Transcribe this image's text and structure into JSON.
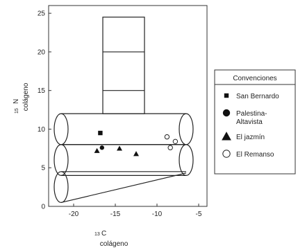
{
  "chart_data": {
    "type": "scatter",
    "x_axis": {
      "isotope": "13",
      "element": "C",
      "label2": "colágeno",
      "ticks": [
        "-20",
        "-15",
        "-10",
        "-5"
      ],
      "range": [
        -23,
        -4
      ]
    },
    "y_axis": {
      "isotope": "15",
      "element": "N",
      "label2": "colágeno",
      "ticks": [
        "0",
        "5",
        "10",
        "15",
        "20",
        "25"
      ],
      "range": [
        0,
        26
      ]
    },
    "legend": {
      "title": "Convenciones",
      "placement": "right",
      "entries": [
        {
          "label": "San Bernardo",
          "marker": "square"
        },
        {
          "label": "Palestina-\nAltavista",
          "marker": "circle"
        },
        {
          "label": "El jazmín",
          "marker": "triangle"
        },
        {
          "label": "El Remanso",
          "marker": "open-circle"
        }
      ]
    },
    "series": [
      {
        "name": "San Bernardo",
        "marker": "square",
        "points": [
          [
            -16.8,
            9.5
          ]
        ]
      },
      {
        "name": "Palestina-Altavista",
        "marker": "circle",
        "points": [
          [
            -16.6,
            7.6
          ]
        ]
      },
      {
        "name": "El jazmín",
        "marker": "triangle",
        "points": [
          [
            -17.2,
            7.2
          ],
          [
            -14.5,
            7.5
          ],
          [
            -12.5,
            6.8
          ]
        ]
      },
      {
        "name": "El Remanso",
        "marker": "open-circle",
        "points": [
          [
            -8.8,
            9.0
          ],
          [
            -8.4,
            7.6
          ],
          [
            -7.8,
            8.4
          ]
        ]
      }
    ],
    "reference_shapes": [
      {
        "shape": "cylinder",
        "x_range": [
          -21.5,
          -6.5
        ],
        "y_range": [
          8,
          12
        ]
      },
      {
        "shape": "cylinder",
        "x_range": [
          -21.5,
          -6.5
        ],
        "y_range": [
          4,
          8
        ]
      },
      {
        "shape": "tapered-cylinder",
        "x_range": [
          -21.5,
          -6.5
        ],
        "y_range": [
          0.5,
          4.5
        ]
      },
      {
        "shape": "column",
        "x_range": [
          -16.5,
          -11.5
        ],
        "y_range": [
          12,
          24.5
        ],
        "dividers": [
          15,
          20
        ]
      }
    ],
    "grid": false
  }
}
